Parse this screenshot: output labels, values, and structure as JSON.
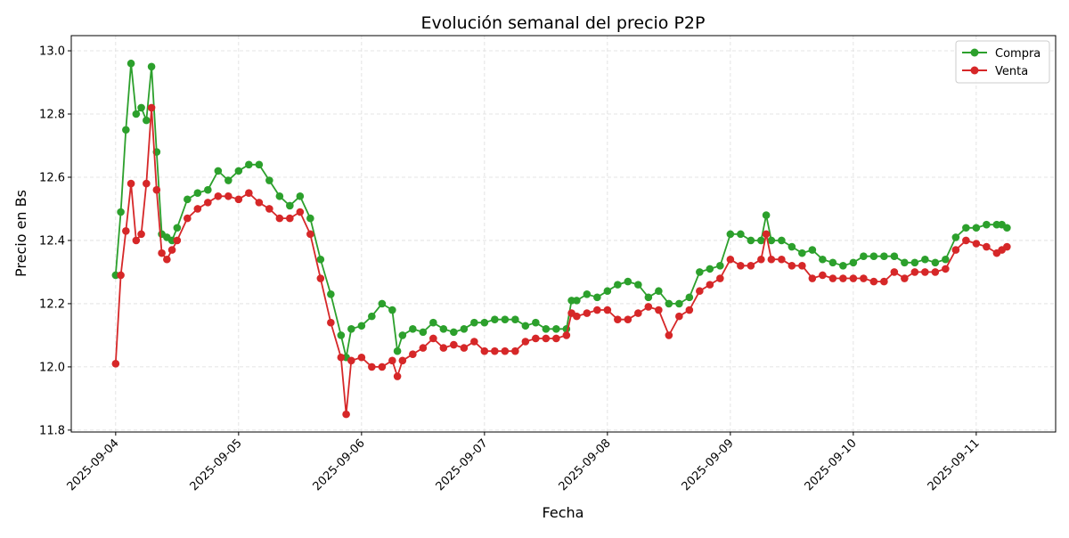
{
  "chart_data": {
    "type": "line",
    "title": "Evolución semanal del precio P2P",
    "xlabel": "Fecha",
    "ylabel": "Precio en Bs",
    "xlim": [
      "2025-09-03 15:20",
      "2025-09-11 15:30"
    ],
    "ylim": [
      11.794,
      13.048
    ],
    "x_ticks": [
      "2025-09-04",
      "2025-09-05",
      "2025-09-06",
      "2025-09-07",
      "2025-09-08",
      "2025-09-09",
      "2025-09-10",
      "2025-09-11"
    ],
    "y_ticks": [
      11.8,
      12.0,
      12.2,
      12.4,
      12.6,
      12.8,
      13.0
    ],
    "y_tick_labels": [
      "11.8",
      "12.0",
      "12.2",
      "12.4",
      "12.6",
      "12.8",
      "13.0"
    ],
    "grid": true,
    "legend_position": "top-right",
    "x": [
      "2025-09-04 00:00",
      "2025-09-04 01:00",
      "2025-09-04 02:00",
      "2025-09-04 03:00",
      "2025-09-04 04:00",
      "2025-09-04 05:00",
      "2025-09-04 06:00",
      "2025-09-04 07:00",
      "2025-09-04 08:00",
      "2025-09-04 09:00",
      "2025-09-04 10:00",
      "2025-09-04 11:00",
      "2025-09-04 12:00",
      "2025-09-04 14:00",
      "2025-09-04 16:00",
      "2025-09-04 18:00",
      "2025-09-04 20:00",
      "2025-09-04 22:00",
      "2025-09-05 00:00",
      "2025-09-05 02:00",
      "2025-09-05 04:00",
      "2025-09-05 06:00",
      "2025-09-05 08:00",
      "2025-09-05 10:00",
      "2025-09-05 12:00",
      "2025-09-05 14:00",
      "2025-09-05 16:00",
      "2025-09-05 18:00",
      "2025-09-05 20:00",
      "2025-09-05 21:00",
      "2025-09-05 22:00",
      "2025-09-06 00:00",
      "2025-09-06 02:00",
      "2025-09-06 04:00",
      "2025-09-06 06:00",
      "2025-09-06 07:00",
      "2025-09-06 08:00",
      "2025-09-06 10:00",
      "2025-09-06 12:00",
      "2025-09-06 14:00",
      "2025-09-06 16:00",
      "2025-09-06 18:00",
      "2025-09-06 20:00",
      "2025-09-06 22:00",
      "2025-09-07 00:00",
      "2025-09-07 02:00",
      "2025-09-07 04:00",
      "2025-09-07 06:00",
      "2025-09-07 08:00",
      "2025-09-07 10:00",
      "2025-09-07 12:00",
      "2025-09-07 14:00",
      "2025-09-07 16:00",
      "2025-09-07 17:00",
      "2025-09-07 18:00",
      "2025-09-07 20:00",
      "2025-09-07 22:00",
      "2025-09-08 00:00",
      "2025-09-08 02:00",
      "2025-09-08 04:00",
      "2025-09-08 06:00",
      "2025-09-08 08:00",
      "2025-09-08 10:00",
      "2025-09-08 12:00",
      "2025-09-08 14:00",
      "2025-09-08 16:00",
      "2025-09-08 18:00",
      "2025-09-08 20:00",
      "2025-09-08 22:00",
      "2025-09-09 00:00",
      "2025-09-09 02:00",
      "2025-09-09 04:00",
      "2025-09-09 06:00",
      "2025-09-09 07:00",
      "2025-09-09 08:00",
      "2025-09-09 10:00",
      "2025-09-09 12:00",
      "2025-09-09 14:00",
      "2025-09-09 16:00",
      "2025-09-09 18:00",
      "2025-09-09 20:00",
      "2025-09-09 22:00",
      "2025-09-10 00:00",
      "2025-09-10 02:00",
      "2025-09-10 04:00",
      "2025-09-10 06:00",
      "2025-09-10 08:00",
      "2025-09-10 10:00",
      "2025-09-10 12:00",
      "2025-09-10 14:00",
      "2025-09-10 16:00",
      "2025-09-10 18:00",
      "2025-09-10 20:00",
      "2025-09-10 22:00",
      "2025-09-11 00:00",
      "2025-09-11 02:00",
      "2025-09-11 04:00",
      "2025-09-11 05:00",
      "2025-09-11 06:00"
    ],
    "series": [
      {
        "name": "Compra",
        "color": "#2ca02c",
        "values": [
          12.29,
          12.49,
          12.75,
          12.96,
          12.8,
          12.82,
          12.78,
          12.95,
          12.68,
          12.42,
          12.41,
          12.4,
          12.44,
          12.53,
          12.55,
          12.56,
          12.62,
          12.59,
          12.62,
          12.64,
          12.64,
          12.59,
          12.54,
          12.51,
          12.54,
          12.47,
          12.34,
          12.23,
          12.1,
          12.03,
          12.12,
          12.13,
          12.16,
          12.2,
          12.18,
          12.05,
          12.1,
          12.12,
          12.11,
          12.14,
          12.12,
          12.11,
          12.12,
          12.14,
          12.14,
          12.15,
          12.15,
          12.15,
          12.13,
          12.14,
          12.12,
          12.12,
          12.12,
          12.21,
          12.21,
          12.23,
          12.22,
          12.24,
          12.26,
          12.27,
          12.26,
          12.22,
          12.24,
          12.2,
          12.2,
          12.22,
          12.3,
          12.31,
          12.32,
          12.42,
          12.42,
          12.4,
          12.4,
          12.48,
          12.4,
          12.4,
          12.38,
          12.36,
          12.37,
          12.34,
          12.33,
          12.32,
          12.33,
          12.35,
          12.35,
          12.35,
          12.35,
          12.33,
          12.33,
          12.34,
          12.33,
          12.34,
          12.41,
          12.44,
          12.44,
          12.45,
          12.45,
          12.45,
          12.44
        ]
      },
      {
        "name": "Venta",
        "color": "#d62728",
        "values": [
          12.01,
          12.29,
          12.43,
          12.58,
          12.4,
          12.42,
          12.58,
          12.82,
          12.56,
          12.36,
          12.34,
          12.37,
          12.4,
          12.47,
          12.5,
          12.52,
          12.54,
          12.54,
          12.53,
          12.55,
          12.52,
          12.5,
          12.47,
          12.47,
          12.49,
          12.42,
          12.28,
          12.14,
          12.03,
          11.85,
          12.02,
          12.03,
          12.0,
          12.0,
          12.02,
          11.97,
          12.02,
          12.04,
          12.06,
          12.09,
          12.06,
          12.07,
          12.06,
          12.08,
          12.05,
          12.05,
          12.05,
          12.05,
          12.08,
          12.09,
          12.09,
          12.09,
          12.1,
          12.17,
          12.16,
          12.17,
          12.18,
          12.18,
          12.15,
          12.15,
          12.17,
          12.19,
          12.18,
          12.1,
          12.16,
          12.18,
          12.24,
          12.26,
          12.28,
          12.34,
          12.32,
          12.32,
          12.34,
          12.42,
          12.34,
          12.34,
          12.32,
          12.32,
          12.28,
          12.29,
          12.28,
          12.28,
          12.28,
          12.28,
          12.27,
          12.27,
          12.3,
          12.28,
          12.3,
          12.3,
          12.3,
          12.31,
          12.37,
          12.4,
          12.39,
          12.38,
          12.36,
          12.37,
          12.38
        ]
      }
    ]
  }
}
